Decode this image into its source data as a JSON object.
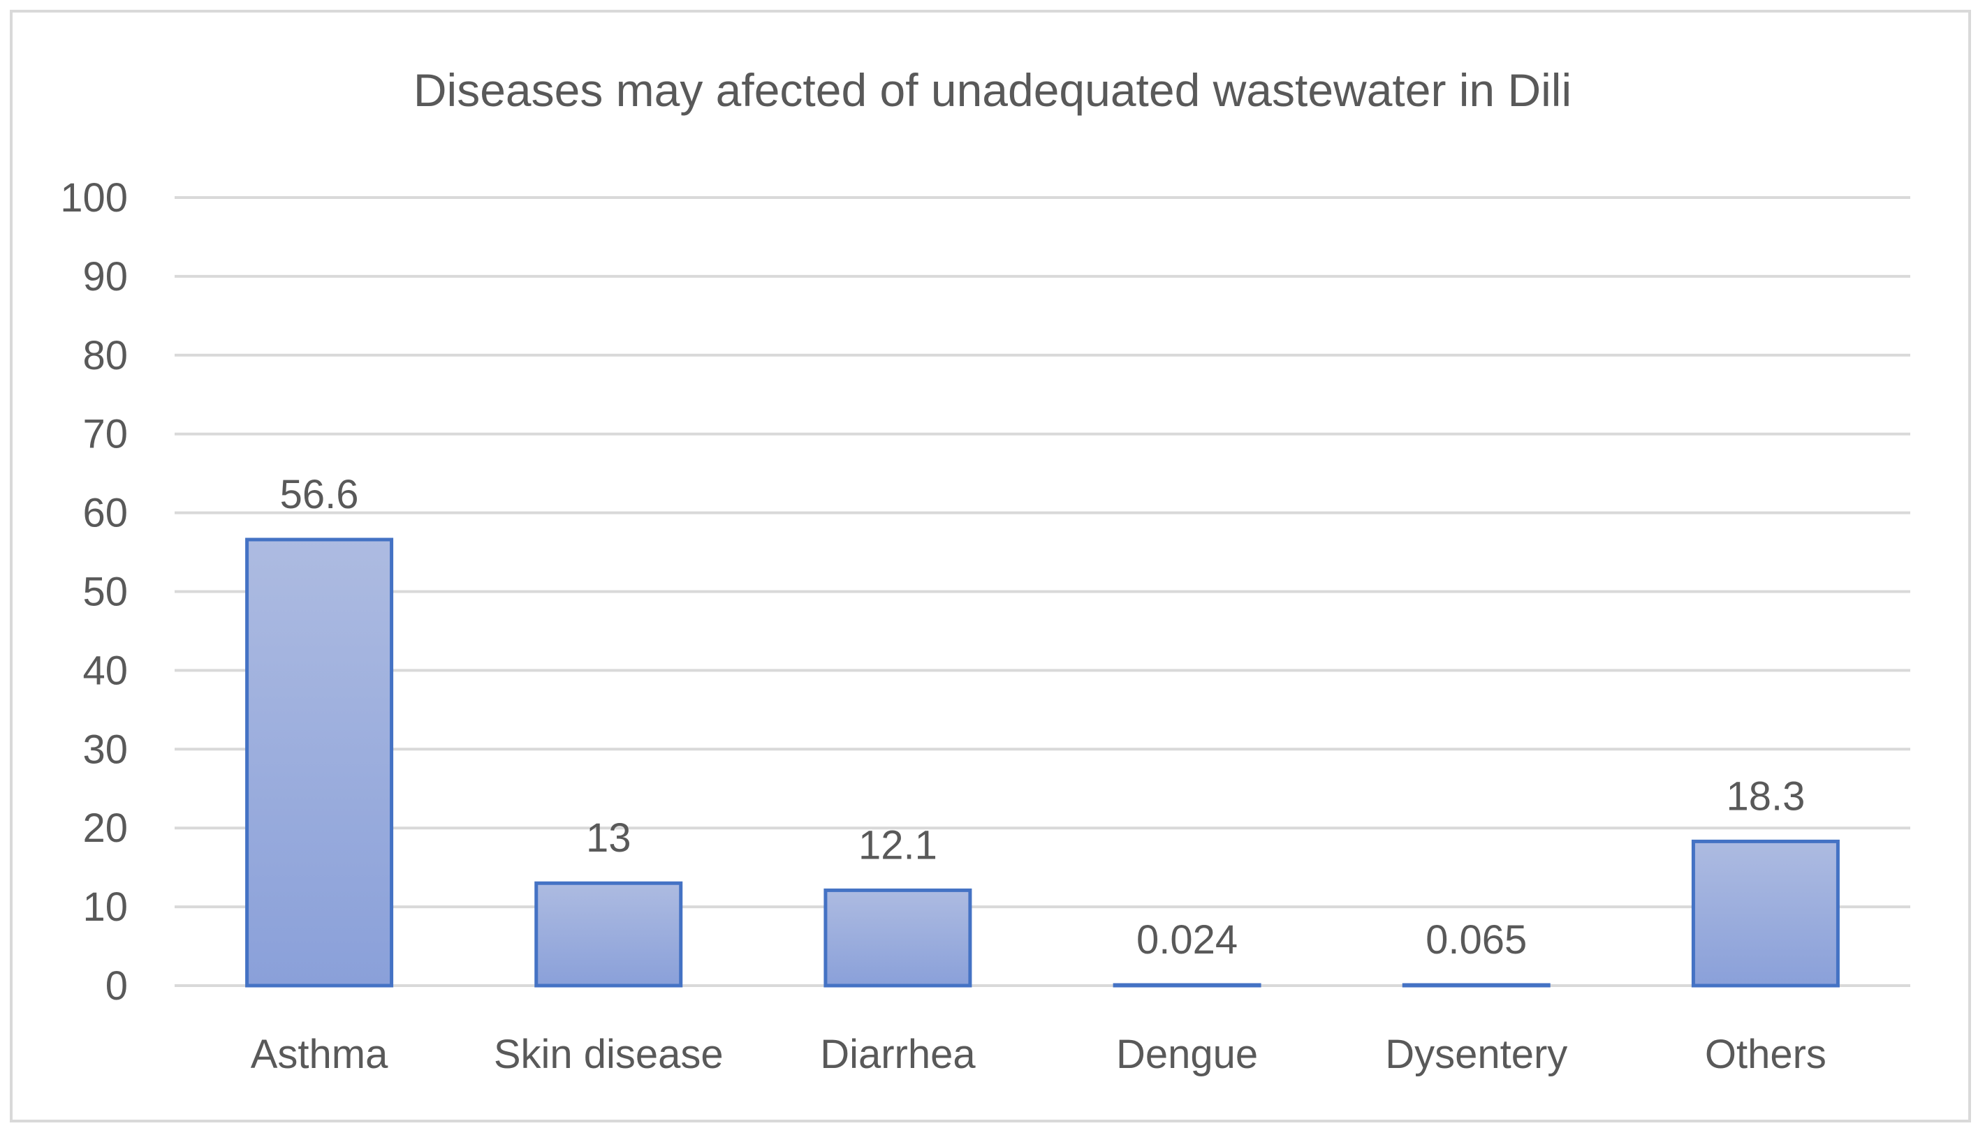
{
  "chart_data": {
    "type": "bar",
    "title": "Diseases may afected of unadequated wastewater in Dili",
    "xlabel": "",
    "ylabel": "",
    "categories": [
      "Asthma",
      "Skin disease",
      "Diarrhea",
      "Dengue",
      "Dysentery",
      "Others"
    ],
    "values": [
      56.6,
      13,
      12.1,
      0.024,
      0.065,
      18.3
    ],
    "value_labels": [
      "56.6",
      "13",
      "12.1",
      "0.024",
      "0.065",
      "18.3"
    ],
    "ylim": [
      0,
      100
    ],
    "yticks": [
      "0",
      "10",
      "20",
      "30",
      "40",
      "50",
      "60",
      "70",
      "80",
      "90",
      "100"
    ],
    "grid": true,
    "legend": "none",
    "colors": {
      "bar_fill_top": "#adbbe1",
      "bar_fill_bottom": "#8aa0d9",
      "bar_stroke": "#4472c4",
      "grid": "#d9d9d9",
      "text": "#595959",
      "frame": "#d9d9d9"
    }
  }
}
